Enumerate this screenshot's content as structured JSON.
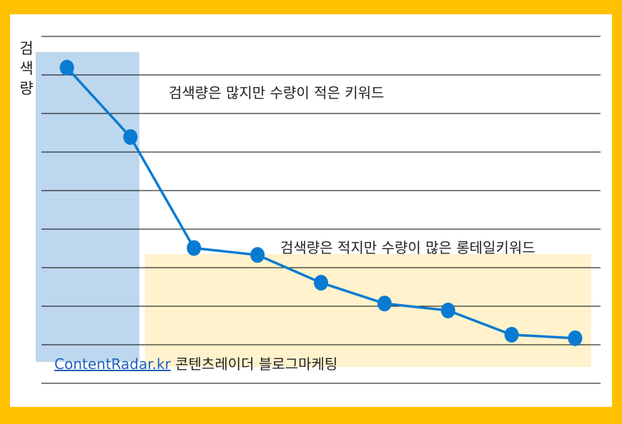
{
  "colors": {
    "frame": "#FFC000",
    "line": "#0A7BD1",
    "head_region": "#BDD7EE",
    "tail_region": "#FFF2CC",
    "grid": "#000000"
  },
  "chart_data": {
    "type": "line",
    "ylabel": "검색량",
    "xlabel": "",
    "x": [
      1,
      2,
      3,
      4,
      5,
      6,
      7,
      8,
      9
    ],
    "series": [
      {
        "values": [
          8.6,
          6.6,
          3.4,
          3.2,
          2.4,
          1.8,
          1.6,
          0.9,
          0.8
        ]
      }
    ],
    "ylim": [
      -0.5,
      9.5
    ],
    "xlim": [
      0.6,
      9.4
    ],
    "grid": "horizontal",
    "grid_lines": 10,
    "regions": [
      {
        "label": "검색량은 많지만 수량이 적은 키워드",
        "x_start": 0.5,
        "x_end": 2.3,
        "color": "#BDD7EE"
      },
      {
        "label": "검색량은 적지만 수량이 많은 롱테일키워드",
        "x_start": 2.3,
        "x_end": 9.2,
        "color": "#FFF2CC"
      }
    ]
  },
  "annotations": {
    "head": "검색량은 많지만 수량이 적은 키워드",
    "tail": "검색량은 적지만 수량이 많은 롱테일키워드"
  },
  "footer": {
    "link": "ContentRadar.kr",
    "text": " 콘텐츠레이더 블로그마케팅"
  }
}
